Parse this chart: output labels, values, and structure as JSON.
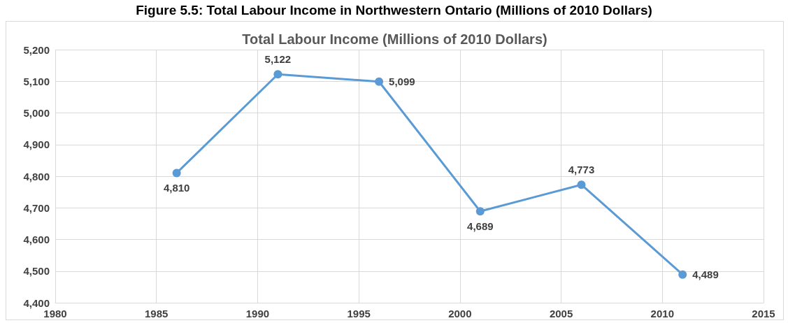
{
  "chart_data": {
    "type": "line",
    "title": "Figure 5.5: Total Labour Income in Northwestern Ontario (Millions of 2010 Dollars)",
    "subtitle": "Total Labour Income (Millions of 2010 Dollars)",
    "x": [
      1986,
      1991,
      1996,
      2001,
      2006,
      2011
    ],
    "series": [
      {
        "color": "#5b9bd5",
        "values": [
          4810,
          5122,
          5099,
          4689,
          4773,
          4489
        ],
        "value_labels": [
          "4,810",
          "5,122",
          "5,099",
          "4,689",
          "4,773",
          "4,489"
        ]
      }
    ],
    "xlim": [
      1980,
      2015
    ],
    "xticks": [
      1980,
      1985,
      1990,
      1995,
      2000,
      2005,
      2010,
      2015
    ],
    "ylim": [
      4400,
      5200
    ],
    "yticks": [
      {
        "value": 4400,
        "label": "4,400"
      },
      {
        "value": 4500,
        "label": "4,500"
      },
      {
        "value": 4600,
        "label": "4,600"
      },
      {
        "value": 4700,
        "label": "4,700"
      },
      {
        "value": 4800,
        "label": "4,800"
      },
      {
        "value": 4900,
        "label": "4,900"
      },
      {
        "value": 5000,
        "label": "5,000"
      },
      {
        "value": 5100,
        "label": "5,100"
      },
      {
        "value": 5200,
        "label": "5,200"
      }
    ],
    "grid": true,
    "marker": "circle",
    "line_style": "solid"
  }
}
